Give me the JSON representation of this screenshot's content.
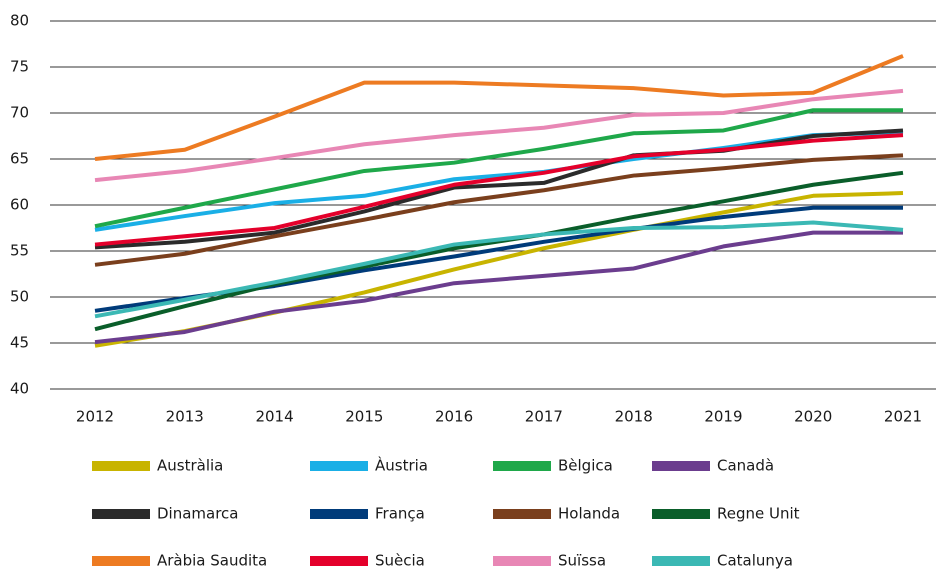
{
  "chart_data": {
    "type": "line",
    "categories": [
      "2012",
      "2013",
      "2014",
      "2015",
      "2016",
      "2017",
      "2018",
      "2019",
      "2020",
      "2021"
    ],
    "ylim": [
      40,
      80
    ],
    "yticks": [
      40,
      45,
      50,
      55,
      60,
      65,
      70,
      75,
      80
    ],
    "grid": true,
    "series": [
      {
        "name": "Austràlia",
        "color": "#c8b400",
        "values": [
          44.7,
          46.3,
          48.3,
          50.5,
          53,
          55.3,
          57.3,
          59.2,
          61,
          61.3
        ]
      },
      {
        "name": "Àustria",
        "color": "#1aafe6",
        "values": [
          57.3,
          58.8,
          60.2,
          61,
          62.8,
          63.6,
          65,
          66.2,
          67.6,
          67.9
        ]
      },
      {
        "name": "Bèlgica",
        "color": "#1fa84a",
        "values": [
          57.7,
          59.7,
          61.7,
          63.7,
          64.6,
          66.1,
          67.8,
          68.1,
          70.3,
          70.3
        ]
      },
      {
        "name": "Canadà",
        "color": "#6b3d8e",
        "values": [
          45.1,
          46.2,
          48.4,
          49.6,
          51.5,
          52.3,
          53.1,
          55.5,
          57,
          57
        ]
      },
      {
        "name": "Dinamarca",
        "color": "#2b2b2b",
        "values": [
          55.4,
          56,
          57,
          59.3,
          61.9,
          62.4,
          65.4,
          65.9,
          67.5,
          68.1
        ]
      },
      {
        "name": "França",
        "color": "#003b7a",
        "values": [
          48.5,
          49.9,
          51.2,
          52.9,
          54.4,
          56,
          57.4,
          58.7,
          59.7,
          59.7
        ]
      },
      {
        "name": "Holanda",
        "color": "#7a3f1d",
        "values": [
          53.5,
          54.7,
          56.6,
          58.4,
          60.3,
          61.6,
          63.2,
          64,
          64.9,
          65.4
        ]
      },
      {
        "name": "Regne Unit",
        "color": "#0a5e2a",
        "values": [
          46.5,
          49,
          51.4,
          53.3,
          55.3,
          56.8,
          58.7,
          60.4,
          62.2,
          63.5
        ]
      },
      {
        "name": "Aràbia Saudita",
        "color": "#ed7b22",
        "values": [
          65,
          66,
          69.6,
          73.3,
          73.3,
          73,
          72.7,
          71.9,
          72.2,
          76.2
        ]
      },
      {
        "name": "Suècia",
        "color": "#e4002b",
        "values": [
          55.7,
          56.6,
          57.5,
          59.8,
          62.2,
          63.5,
          65.3,
          66,
          67,
          67.6
        ]
      },
      {
        "name": "Suïssa",
        "color": "#e887b5",
        "values": [
          62.7,
          63.7,
          65.1,
          66.6,
          67.6,
          68.4,
          69.8,
          70,
          71.5,
          72.4
        ]
      },
      {
        "name": "Catalunya",
        "color": "#3bb8b4",
        "values": [
          47.9,
          49.7,
          51.6,
          53.6,
          55.7,
          56.8,
          57.5,
          57.6,
          58.1,
          57.3
        ]
      }
    ]
  }
}
